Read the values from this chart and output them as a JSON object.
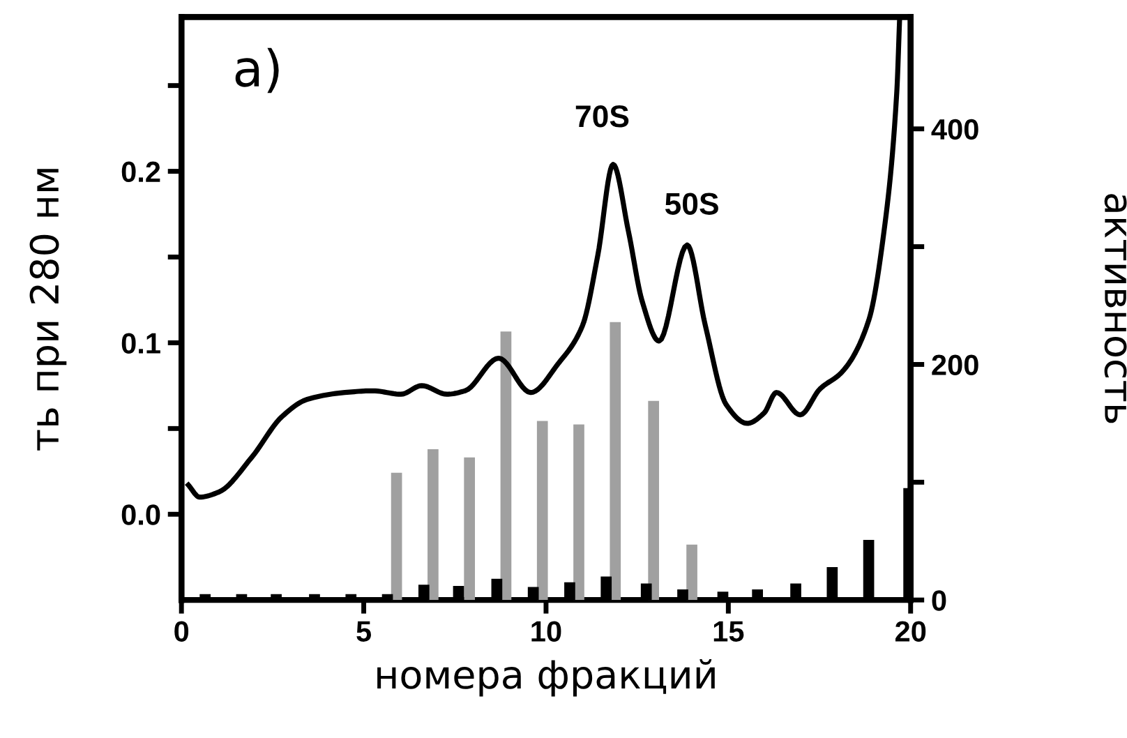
{
  "chart_data": {
    "type": "line",
    "xlabel": "номера фракций",
    "ylabel": "ть при 280 нм",
    "y2label": "активность",
    "annotations": [
      "a)",
      "70S",
      "50S"
    ],
    "xlim": [
      0,
      20
    ],
    "xticks": [
      0,
      5,
      10,
      15,
      20
    ],
    "ylim": [
      -0.05,
      0.29
    ],
    "yticks": [
      {
        "value": 0,
        "label": "0.0"
      },
      {
        "value": 0.05,
        "label": null
      },
      {
        "value": 0.1,
        "label": "0.1"
      },
      {
        "value": 0.15,
        "label": null
      },
      {
        "value": 0.2,
        "label": "0.2"
      },
      {
        "value": 0.25,
        "label": null
      }
    ],
    "y2lim": [
      0,
      495
    ],
    "y2ticks": [
      0,
      {
        "value": 100,
        "label": null
      },
      200,
      {
        "value": 300,
        "label": null
      },
      400
    ],
    "grid": false,
    "legend": false,
    "marker": "none",
    "line_style": "solid",
    "series": [
      {
        "type": "bar",
        "axis": "y2",
        "color": "#a0a0a0",
        "x": [
          5.9,
          6.9,
          7.9,
          8.9,
          9.9,
          10.9,
          11.9,
          12.95,
          14.0
        ],
        "values": [
          108,
          128,
          121,
          228,
          152,
          149,
          236,
          169,
          47
        ]
      },
      {
        "type": "bar",
        "axis": "y2",
        "color": "#000000",
        "x": [
          0.65,
          1.65,
          2.6,
          3.65,
          4.65,
          5.65,
          6.65,
          7.6,
          8.65,
          9.65,
          10.65,
          11.65,
          12.75,
          13.75,
          14.85,
          15.8,
          16.85,
          17.85,
          18.85,
          19.95
        ],
        "values": [
          5,
          5,
          5,
          5,
          5,
          5,
          13,
          12,
          18,
          11,
          15,
          20,
          14,
          9,
          7,
          9,
          14,
          28,
          51,
          95
        ]
      },
      {
        "color": "#000000",
        "x": [
          0.19,
          0.5,
          1.03,
          1.92,
          2.76,
          3.45,
          4.48,
          5.25,
          6.02,
          6.59,
          7.28,
          7.78,
          8.7,
          9.58,
          10.34,
          11.0,
          11.42,
          11.84,
          12.26,
          12.64,
          13.1,
          13.87,
          14.37,
          14.94,
          15.52,
          15.98,
          16.32,
          16.97,
          17.51,
          18.12,
          18.85,
          19.27,
          19.62,
          19.7
        ],
        "values": [
          0.017,
          0.01,
          0.013,
          0.033,
          0.057,
          0.067,
          0.071,
          0.072,
          0.07,
          0.075,
          0.07,
          0.072,
          0.091,
          0.071,
          0.088,
          0.11,
          0.151,
          0.204,
          0.165,
          0.124,
          0.101,
          0.157,
          0.11,
          0.064,
          0.053,
          0.059,
          0.071,
          0.058,
          0.073,
          0.083,
          0.113,
          0.165,
          0.246,
          0.29
        ]
      }
    ]
  }
}
